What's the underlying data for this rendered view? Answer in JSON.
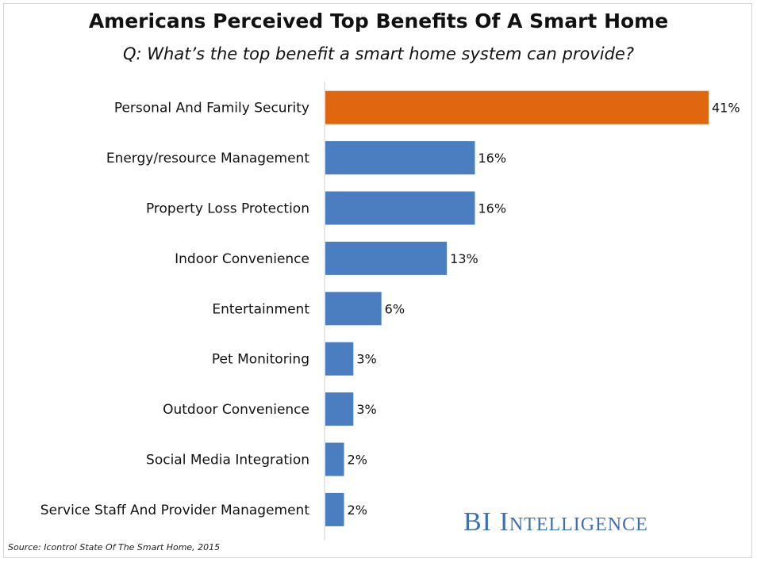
{
  "chart_data": {
    "type": "bar",
    "orientation": "horizontal",
    "title": "Americans Perceived Top Benefits Of A Smart Home",
    "subtitle": "Q: What’s the top benefit a smart home system can provide?",
    "categories": [
      "Personal And Family Security",
      "Energy/resource Management",
      "Property Loss Protection",
      "Indoor Convenience",
      "Entertainment",
      "Pet Monitoring",
      "Outdoor Convenience",
      "Social Media Integration",
      "Service Staff And Provider Management"
    ],
    "values": [
      41,
      16,
      16,
      13,
      6,
      3,
      3,
      2,
      2
    ],
    "value_labels": [
      "41%",
      "16%",
      "16%",
      "13%",
      "6%",
      "3%",
      "3%",
      "2%",
      "2%"
    ],
    "xlim": [
      0,
      41
    ],
    "grid": false,
    "colors": {
      "highlight": "#e0660f",
      "default": "#4a7ec0",
      "axis": "#cfcfcf"
    },
    "highlight_index": 0
  },
  "source": "Source: Icontrol State Of The Smart Home, 2015",
  "brand": "BI Intelligence"
}
